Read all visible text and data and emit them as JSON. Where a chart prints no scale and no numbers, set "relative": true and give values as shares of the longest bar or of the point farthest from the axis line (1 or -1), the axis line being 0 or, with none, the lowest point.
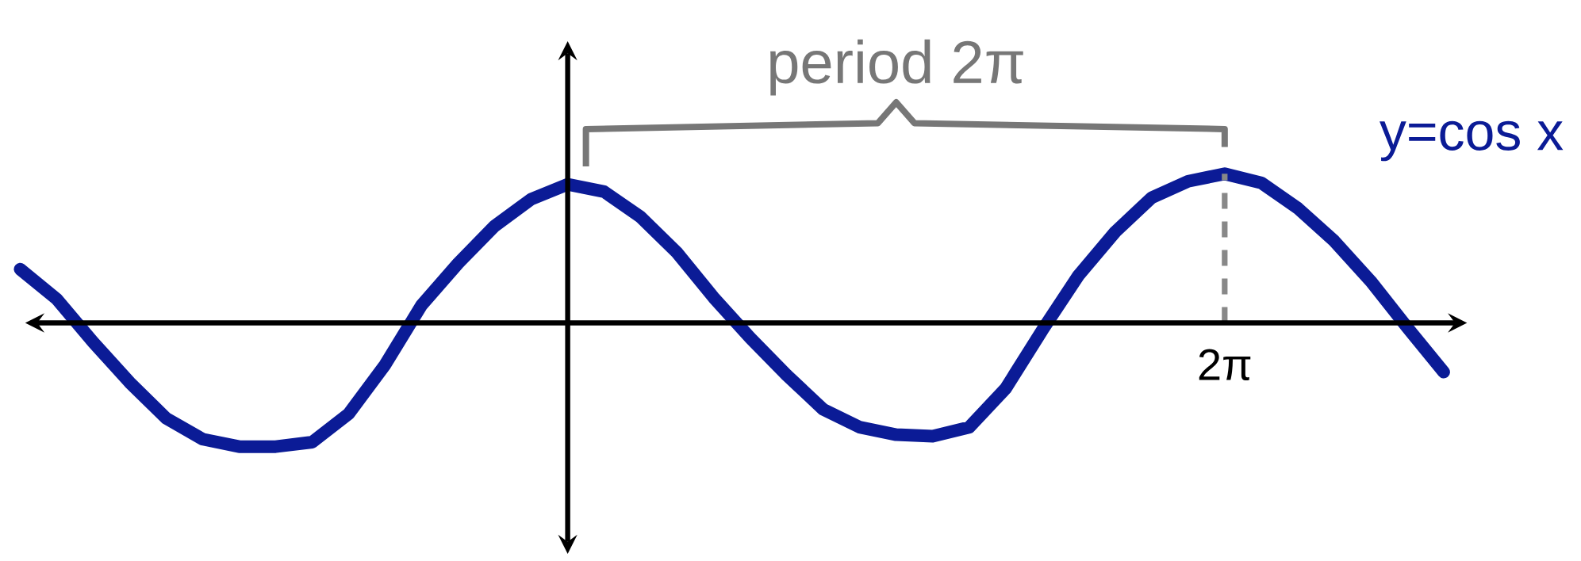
{
  "chart_data": {
    "type": "line",
    "relative": true,
    "categories": [
      null,
      null,
      null,
      null,
      null,
      null,
      null,
      null,
      null,
      null,
      null,
      null,
      null,
      null,
      null,
      null,
      null,
      null,
      null,
      null,
      null,
      null,
      null,
      null,
      null,
      null,
      null,
      null,
      null,
      null,
      null,
      null,
      null,
      null,
      null,
      null,
      null,
      null,
      null,
      null
    ],
    "series": [
      {
        "name": "y=cos x",
        "color": "#0b1b96",
        "values": [
          0.36,
          0.16,
          -0.13,
          -0.4,
          -0.64,
          -0.78,
          -0.83,
          -0.83,
          -0.8,
          -0.61,
          -0.28,
          0.12,
          0.4,
          0.65,
          0.83,
          0.93,
          0.88,
          0.71,
          0.47,
          0.17,
          -0.1,
          -0.35,
          -0.58,
          -0.7,
          -0.75,
          -0.76,
          -0.7,
          -0.44,
          -0.05,
          0.32,
          0.61,
          0.84,
          0.95,
          1,
          0.94,
          0.77,
          0.55,
          0.28,
          -0.03,
          -0.33
        ]
      }
    ],
    "annotations": [
      "period 2π",
      "2π"
    ],
    "marker": "none",
    "line_style": "solid"
  }
}
